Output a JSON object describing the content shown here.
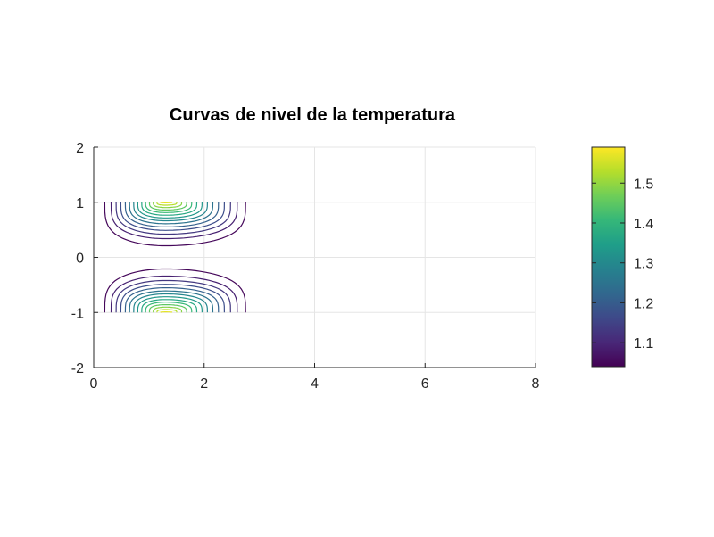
{
  "chart_data": {
    "type": "contour",
    "title": "Curvas de nivel de la temperatura",
    "xlabel": "",
    "ylabel": "",
    "xlim": [
      0,
      8
    ],
    "ylim": [
      -2,
      2
    ],
    "x_ticks": [
      "0",
      "2",
      "4",
      "6",
      "8"
    ],
    "y_ticks": [
      "-2",
      "-1",
      "0",
      "1",
      "2"
    ],
    "grid": true,
    "colormap": "viridis",
    "colorbar": {
      "range": [
        1.04,
        1.59
      ],
      "tick_labels": [
        "1.1",
        "1.2",
        "1.3",
        "1.4",
        "1.5"
      ],
      "tick_values": [
        1.1,
        1.2,
        1.3,
        1.4,
        1.5
      ]
    },
    "contour_region": {
      "x": [
        0.2,
        2.75
      ],
      "y_bands": [
        [
          0.22,
          1.0
        ],
        [
          -1.0,
          -0.22
        ]
      ]
    },
    "peak": {
      "x": 1.3,
      "y_values": [
        1.0,
        -1.0
      ],
      "value": 1.59
    },
    "levels": [
      1.05,
      1.09,
      1.13,
      1.17,
      1.21,
      1.25,
      1.29,
      1.33,
      1.37,
      1.41,
      1.45,
      1.49,
      1.53,
      1.57
    ]
  },
  "colors": {
    "axis": "#262626",
    "grid": "#e5e5e5",
    "viridis": [
      "#440154",
      "#482878",
      "#3e4989",
      "#31688e",
      "#26828e",
      "#1f9e89",
      "#35b779",
      "#6ece58",
      "#b5de2b",
      "#fde725"
    ]
  }
}
